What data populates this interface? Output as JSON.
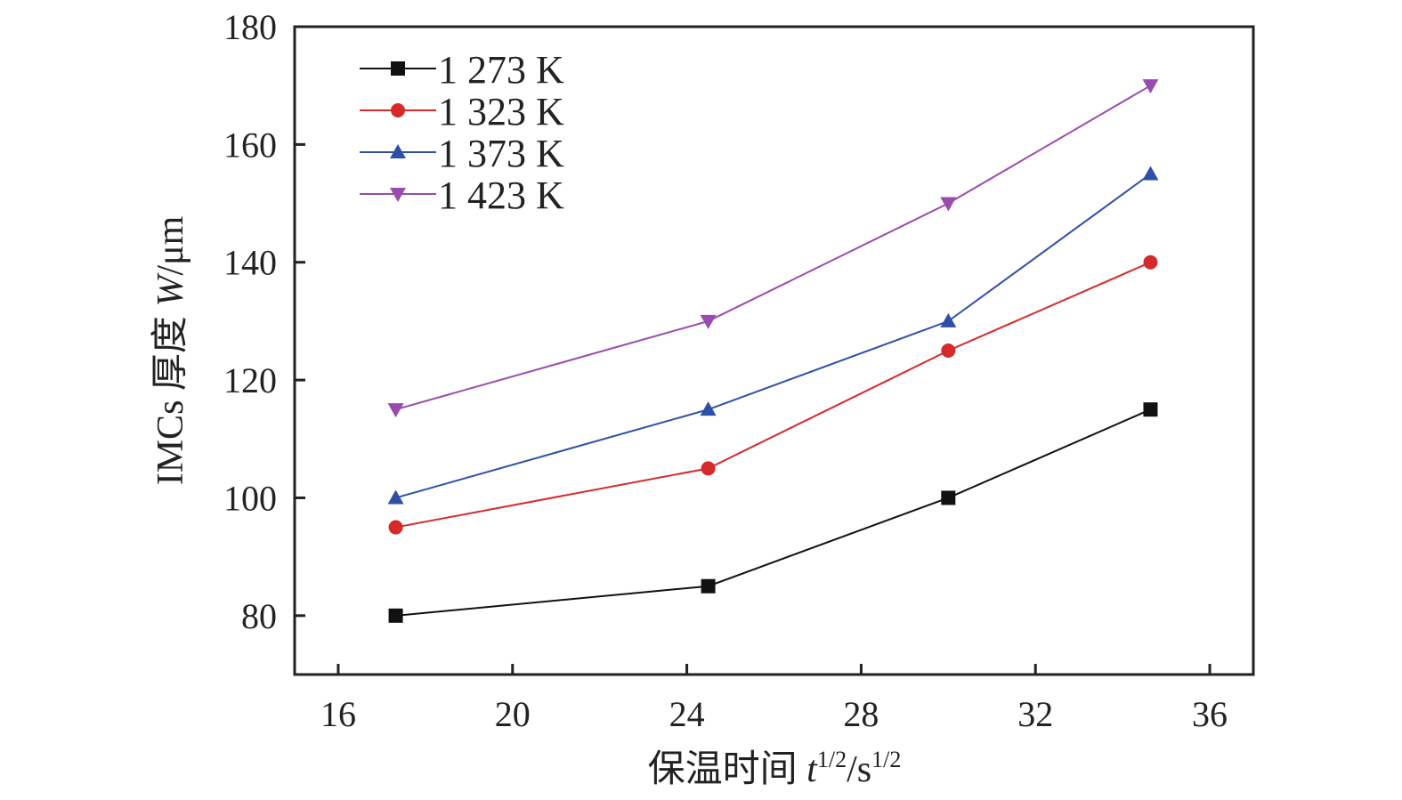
{
  "chart_data": {
    "type": "line",
    "title": "",
    "xlabel": "保温时间 t^1/2/s^1/2",
    "xlabel_parts": {
      "prefix": "保温时间 ",
      "var": "t",
      "sup1": "1/2",
      "mid": "/s",
      "sup2": "1/2"
    },
    "ylabel": "IMCs 厚度 W/μm",
    "ylabel_parts": {
      "prefix": "IMCs 厚度 ",
      "var": "W",
      "suffix": "/μm"
    },
    "xlim": [
      15,
      37
    ],
    "ylim": [
      70,
      180
    ],
    "xticks": [
      16,
      20,
      24,
      28,
      32,
      36
    ],
    "yticks": [
      80,
      100,
      120,
      140,
      160,
      180
    ],
    "x": [
      17.32,
      24.49,
      30,
      34.64
    ],
    "legend_position": "top-left",
    "grid": false,
    "series": [
      {
        "name": "1 273 K",
        "color": "#111111",
        "marker": "square",
        "values": [
          80,
          85,
          100,
          115
        ]
      },
      {
        "name": "1 323 K",
        "color": "#d62a2a",
        "marker": "circle",
        "values": [
          95,
          105,
          125,
          140
        ]
      },
      {
        "name": "1 373 K",
        "color": "#2f4ea8",
        "marker": "triangle-up",
        "values": [
          100,
          115,
          130,
          155
        ]
      },
      {
        "name": "1 423 K",
        "color": "#9a4bb0",
        "marker": "triangle-down",
        "values": [
          115,
          130,
          150,
          170
        ]
      }
    ]
  }
}
